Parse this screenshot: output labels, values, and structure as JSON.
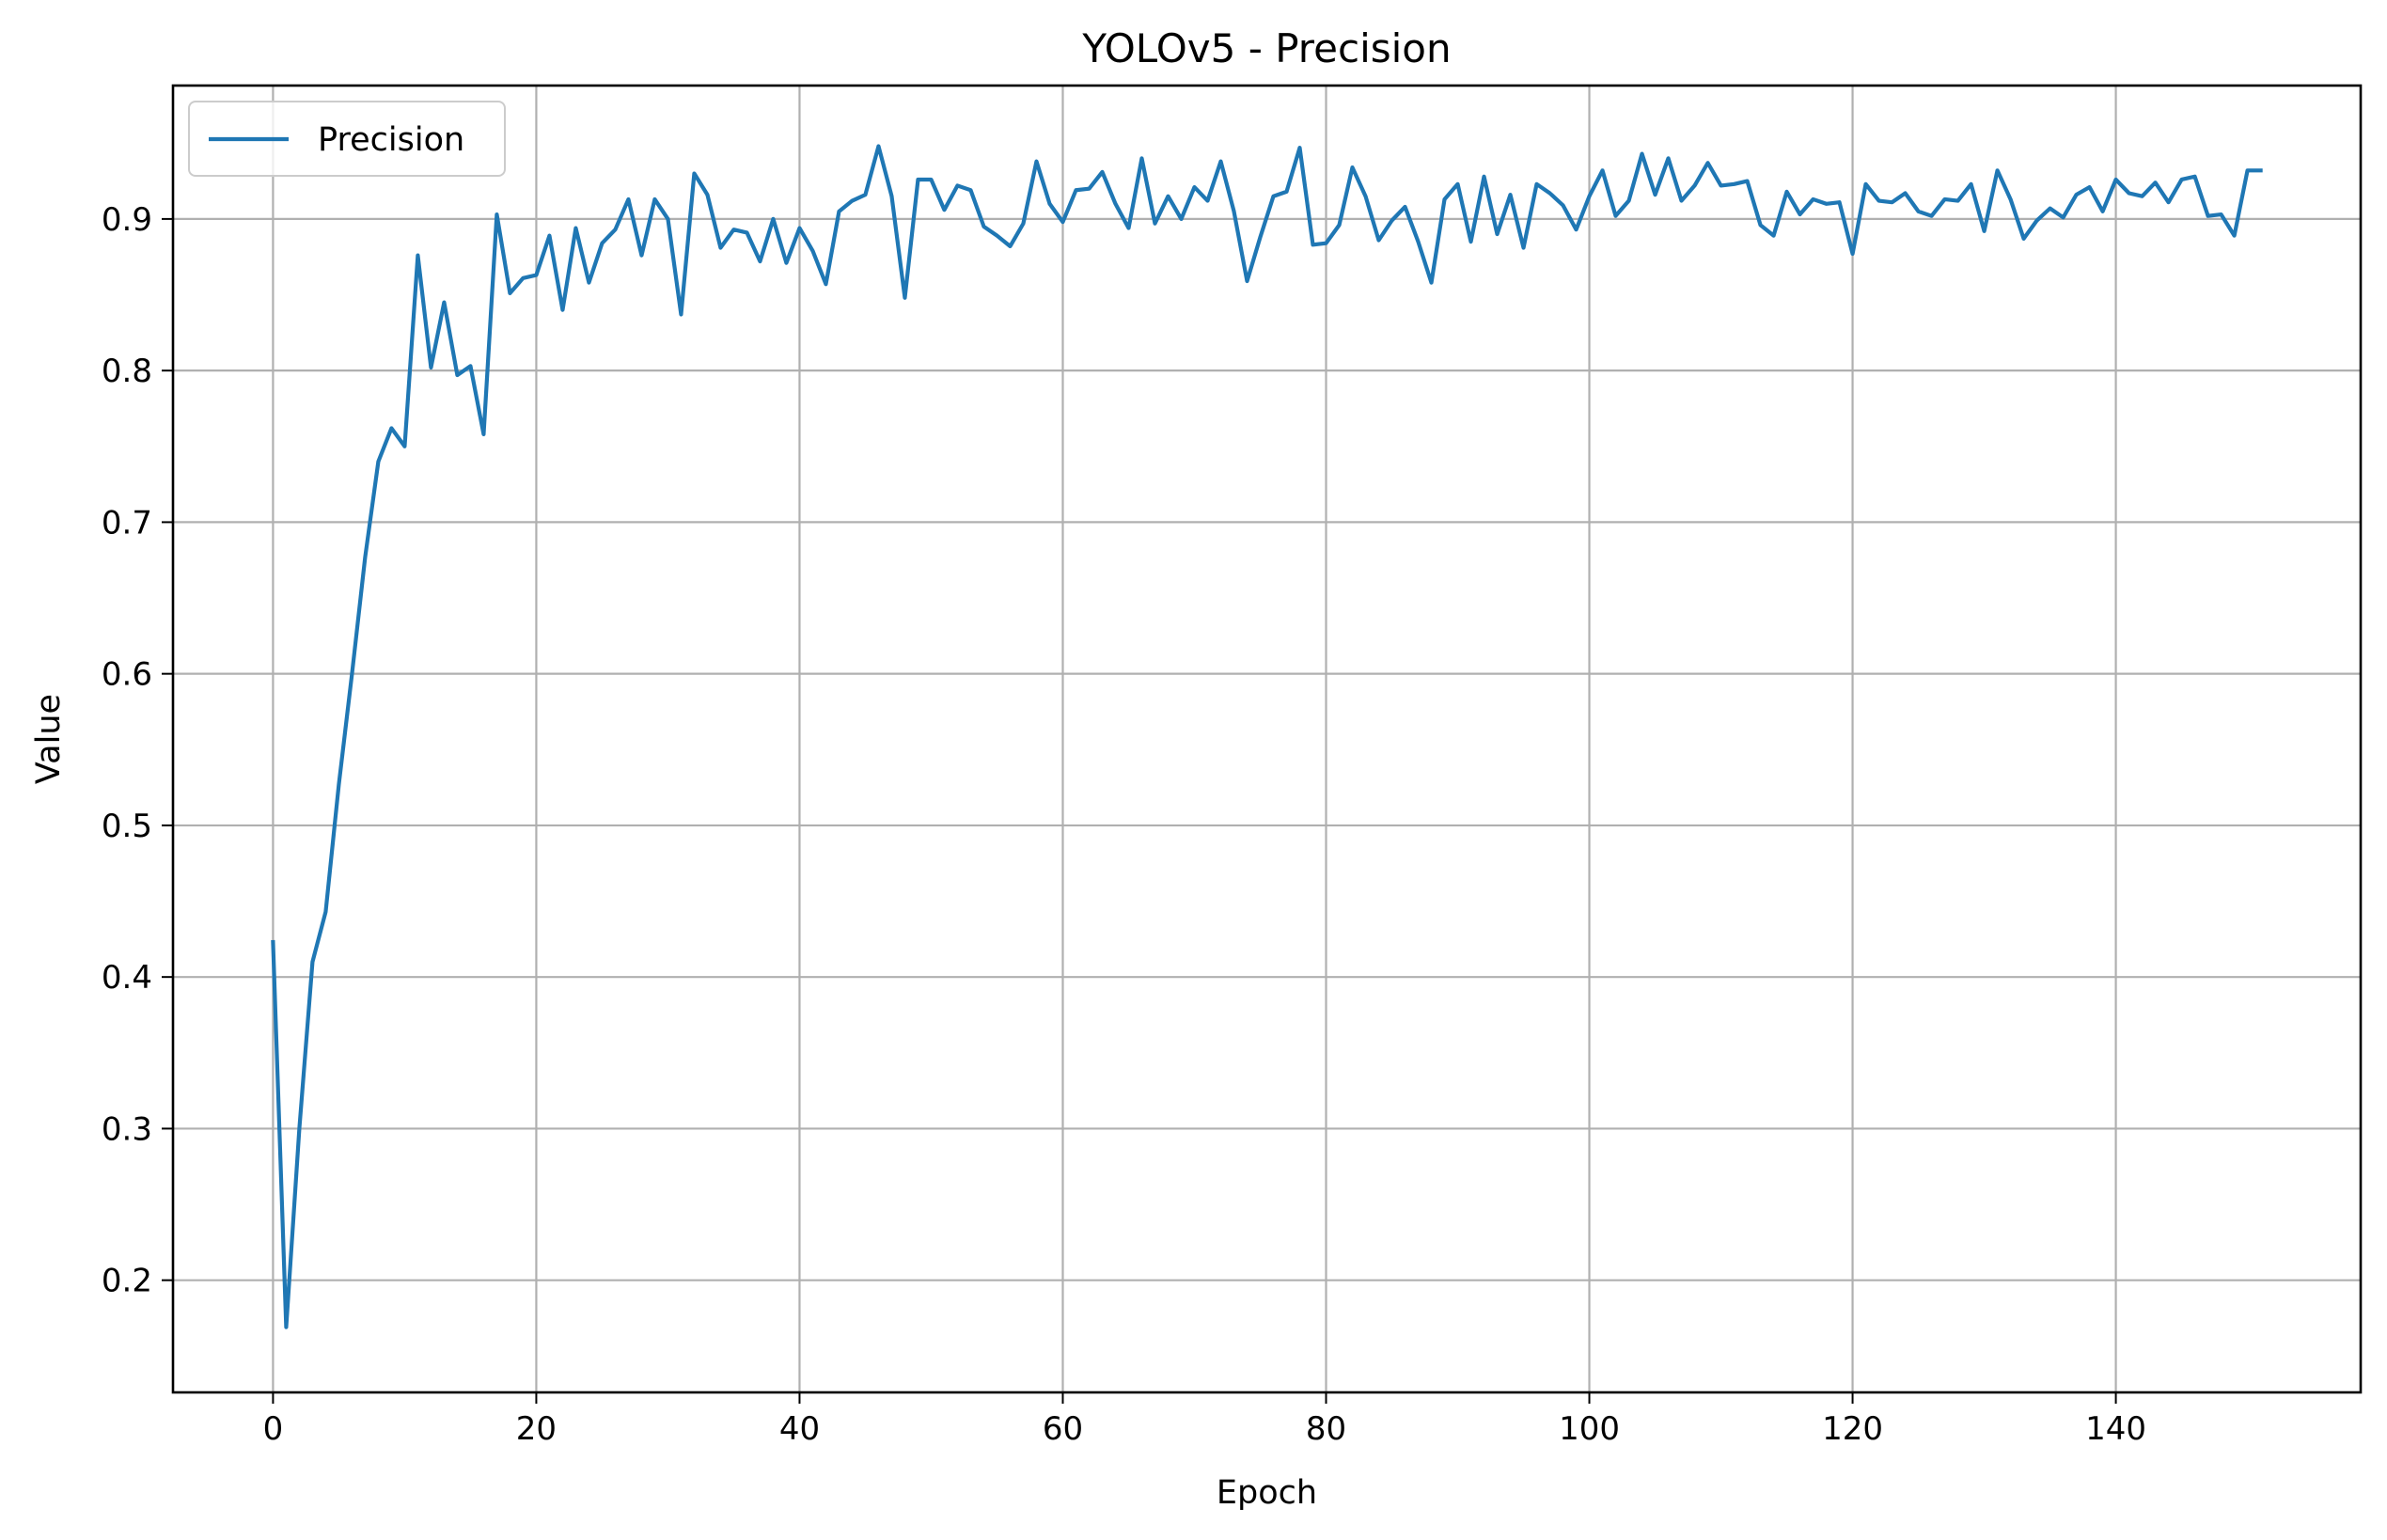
{
  "chart_data": {
    "type": "line",
    "title": "YOLOv5 - Precision",
    "xlabel": "Epoch",
    "ylabel": "Value",
    "xlim": [
      -7.6,
      158.6
    ],
    "ylim": [
      0.126,
      0.988
    ],
    "xticks": [
      0,
      20,
      40,
      60,
      80,
      100,
      120,
      140
    ],
    "yticks": [
      0.2,
      0.3,
      0.4,
      0.5,
      0.6,
      0.7,
      0.8,
      0.9
    ],
    "grid": true,
    "legend_position": "top-left",
    "colors": {
      "series": "#1f77b4",
      "grid": "#b0b0b0"
    },
    "series": [
      {
        "name": "Precision",
        "x": [
          0,
          1,
          2,
          3,
          4,
          5,
          6,
          7,
          8,
          9,
          10,
          11,
          12,
          13,
          14,
          15,
          16,
          17,
          18,
          19,
          20,
          21,
          22,
          23,
          24,
          25,
          26,
          27,
          28,
          29,
          30,
          31,
          32,
          33,
          34,
          35,
          36,
          37,
          38,
          39,
          40,
          41,
          42,
          43,
          44,
          45,
          46,
          47,
          48,
          49,
          50,
          51,
          52,
          53,
          54,
          55,
          56,
          57,
          58,
          59,
          60,
          61,
          62,
          63,
          64,
          65,
          66,
          67,
          68,
          69,
          70,
          71,
          72,
          73,
          74,
          75,
          76,
          77,
          78,
          79,
          80,
          81,
          82,
          83,
          84,
          85,
          86,
          87,
          88,
          89,
          90,
          91,
          92,
          93,
          94,
          95,
          96,
          97,
          98,
          99,
          100,
          101,
          102,
          103,
          104,
          105,
          106,
          107,
          108,
          109,
          110,
          111,
          112,
          113,
          114,
          115,
          116,
          117,
          118,
          119,
          120,
          121,
          122,
          123,
          124,
          125,
          126,
          127,
          128,
          129,
          130,
          131,
          132,
          133,
          134,
          135,
          136,
          137,
          138,
          139,
          140,
          141,
          142,
          143,
          144,
          145,
          146,
          147,
          148,
          149,
          150,
          151
        ],
        "values": [
          0.423,
          0.169,
          0.3,
          0.41,
          0.443,
          0.527,
          0.6,
          0.677,
          0.74,
          0.762,
          0.75,
          0.876,
          0.802,
          0.845,
          0.797,
          0.803,
          0.758,
          0.903,
          0.851,
          0.861,
          0.863,
          0.889,
          0.84,
          0.894,
          0.858,
          0.884,
          0.893,
          0.913,
          0.876,
          0.913,
          0.9,
          0.837,
          0.93,
          0.916,
          0.881,
          0.893,
          0.891,
          0.872,
          0.9,
          0.871,
          0.894,
          0.879,
          0.857,
          0.905,
          0.912,
          0.916,
          0.948,
          0.915,
          0.848,
          0.926,
          0.926,
          0.906,
          0.922,
          0.919,
          0.895,
          0.889,
          0.882,
          0.897,
          0.938,
          0.91,
          0.898,
          0.919,
          0.92,
          0.931,
          0.91,
          0.894,
          0.94,
          0.897,
          0.915,
          0.9,
          0.921,
          0.912,
          0.938,
          0.905,
          0.859,
          0.888,
          0.915,
          0.918,
          0.947,
          0.883,
          0.884,
          0.896,
          0.934,
          0.915,
          0.886,
          0.899,
          0.908,
          0.885,
          0.858,
          0.913,
          0.923,
          0.885,
          0.928,
          0.89,
          0.916,
          0.881,
          0.923,
          0.917,
          0.909,
          0.893,
          0.915,
          0.932,
          0.902,
          0.912,
          0.943,
          0.916,
          0.94,
          0.912,
          0.922,
          0.937,
          0.922,
          0.923,
          0.925,
          0.896,
          0.889,
          0.918,
          0.903,
          0.913,
          0.91,
          0.911,
          0.877,
          0.923,
          0.912,
          0.911,
          0.917,
          0.905,
          0.902,
          0.913,
          0.912,
          0.923,
          0.892,
          0.932,
          0.913,
          0.887,
          0.899,
          0.907,
          0.901,
          0.916,
          0.921,
          0.905,
          0.926,
          0.917,
          0.915,
          0.924,
          0.911,
          0.926,
          0.928,
          0.902,
          0.903,
          0.889,
          0.932,
          0.932
        ]
      }
    ]
  }
}
